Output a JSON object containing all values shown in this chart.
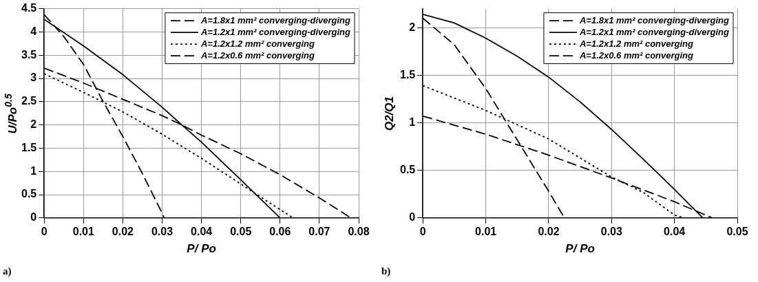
{
  "chart_data": [
    {
      "type": "line",
      "xlabel": "P/ Po",
      "ylabel": "U/Po$^{0.5}$",
      "xlim": [
        0,
        0.08
      ],
      "xticks": [
        0,
        0.01,
        0.02,
        0.03,
        0.04,
        0.05,
        0.06,
        0.07,
        0.08
      ],
      "ylim": [
        0,
        4.5
      ],
      "yticks": [
        0,
        0.5,
        1,
        1.5,
        2,
        2.5,
        3,
        3.5,
        4,
        4.5
      ],
      "grid": true,
      "legend": "top right",
      "marker": "none",
      "annotations": [
        "a)"
      ],
      "series": [
        {
          "name": "A=1.8x1 mm² converging-diverging",
          "color": "#000000",
          "line_style": "dashed",
          "x": [
            0,
            0.01,
            0.02,
            0.03,
            0.035,
            0.04,
            0.05,
            0.06,
            0.07,
            0.078
          ],
          "values": [
            3.22,
            2.9,
            2.55,
            2.2,
            2.0,
            1.78,
            1.38,
            0.93,
            0.43,
            0
          ]
        },
        {
          "name": "A=1.2x1 mm² converging-diverging",
          "color": "#000000",
          "line_style": "solid",
          "x": [
            0,
            0.01,
            0.02,
            0.03,
            0.035,
            0.04,
            0.05,
            0.06
          ],
          "values": [
            4.27,
            3.7,
            3.08,
            2.38,
            2.0,
            1.63,
            0.82,
            0
          ]
        },
        {
          "name": "A=1.2x1.2 mm² converging",
          "color": "#000000",
          "line_style": "dotted",
          "x": [
            0,
            0.01,
            0.02,
            0.03,
            0.04,
            0.05,
            0.055,
            0.06,
            0.0633
          ],
          "values": [
            3.1,
            2.7,
            2.28,
            1.8,
            1.28,
            0.73,
            0.45,
            0.18,
            0
          ]
        },
        {
          "name": "A=1.2x0.6 mm² converging",
          "color": "#000000",
          "line_style": "dashed",
          "x": [
            0,
            0.005,
            0.01,
            0.015,
            0.02,
            0.025,
            0.03,
            0.0305
          ],
          "values": [
            4.37,
            3.9,
            3.3,
            2.5,
            1.75,
            0.95,
            0.1,
            0
          ]
        }
      ]
    },
    {
      "type": "line",
      "xlabel": "P/ Po",
      "ylabel": "Q2/Q1",
      "xlim": [
        0,
        0.05
      ],
      "xticks": [
        0,
        0.01,
        0.02,
        0.03,
        0.04,
        0.05
      ],
      "ylim": [
        0,
        2.2
      ],
      "yticks": [
        0,
        0.5,
        1,
        1.5,
        2
      ],
      "grid": true,
      "legend": "top right",
      "marker": "none",
      "annotations": [
        "b)"
      ],
      "series": [
        {
          "name": "A=1.8x1 mm² converging-diverging",
          "color": "#000000",
          "line_style": "dashed",
          "x": [
            0,
            0.01,
            0.02,
            0.03,
            0.04,
            0.046
          ],
          "values": [
            1.07,
            0.88,
            0.66,
            0.42,
            0.17,
            0
          ]
        },
        {
          "name": "A=1.2x1 mm² converging-diverging",
          "color": "#000000",
          "line_style": "solid",
          "x": [
            0,
            0.005,
            0.01,
            0.015,
            0.02,
            0.025,
            0.03,
            0.035,
            0.04,
            0.0445
          ],
          "values": [
            2.14,
            2.05,
            1.89,
            1.7,
            1.48,
            1.22,
            0.93,
            0.62,
            0.3,
            0
          ]
        },
        {
          "name": "A=1.2x1.2 mm² converging",
          "color": "#000000",
          "line_style": "dotted",
          "x": [
            0,
            0.01,
            0.02,
            0.03,
            0.035,
            0.04,
            0.0415
          ],
          "values": [
            1.39,
            1.13,
            0.83,
            0.43,
            0.27,
            0.03,
            0
          ]
        },
        {
          "name": "A=1.2x0.6 mm² converging",
          "color": "#000000",
          "line_style": "dashed",
          "x": [
            0,
            0.005,
            0.01,
            0.015,
            0.02,
            0.0225
          ],
          "values": [
            2.1,
            1.82,
            1.36,
            0.82,
            0.28,
            0
          ]
        }
      ]
    }
  ]
}
